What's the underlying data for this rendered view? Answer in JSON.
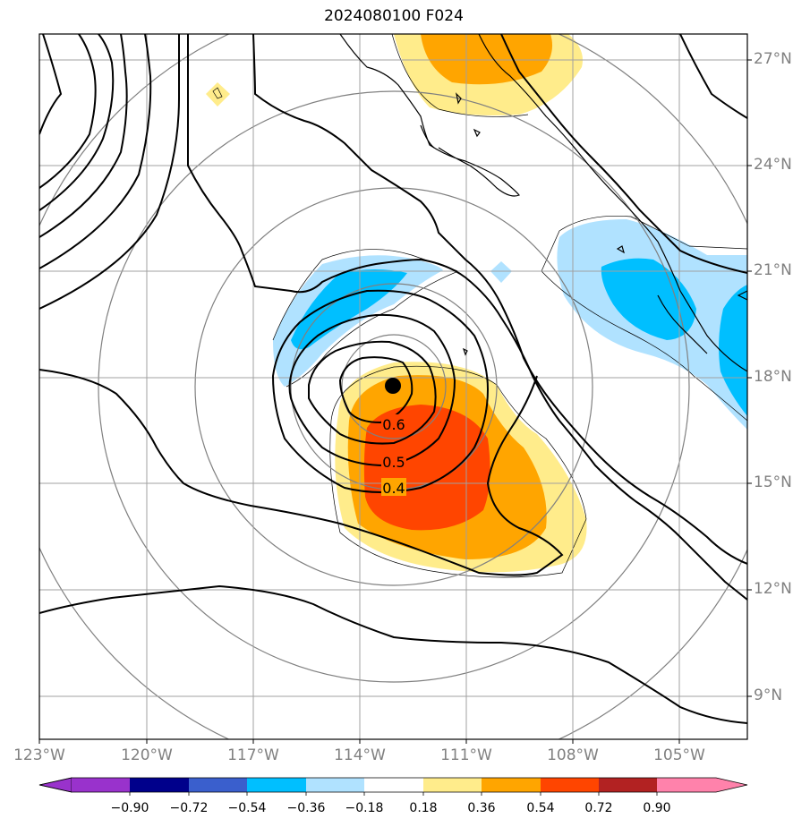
{
  "title": "2024080100 F024",
  "lat_labels": [
    "27°N",
    "24°N",
    "21°N",
    "18°N",
    "15°N",
    "12°N",
    "9°N"
  ],
  "lon_labels": [
    "123°W",
    "120°W",
    "117°W",
    "114°W",
    "111°W",
    "108°W",
    "105°W"
  ],
  "contour_labels": [
    "0.6",
    "0.5",
    "0.4"
  ],
  "colorbar": {
    "ticks": [
      "−0.90",
      "−0.72",
      "−0.54",
      "−0.36",
      "−0.18",
      "0.18",
      "0.36",
      "0.54",
      "0.72",
      "0.90"
    ],
    "colors": [
      "#9932cc",
      "#00008b",
      "#3a5fcd",
      "#00bfff",
      "#b0e2ff",
      "#ffffff",
      "#ffec8b",
      "#ffa500",
      "#ff4500",
      "#b22222",
      "#ff82ab"
    ]
  },
  "storm_center": {
    "lon": -113.1,
    "lat": 17.8
  }
}
